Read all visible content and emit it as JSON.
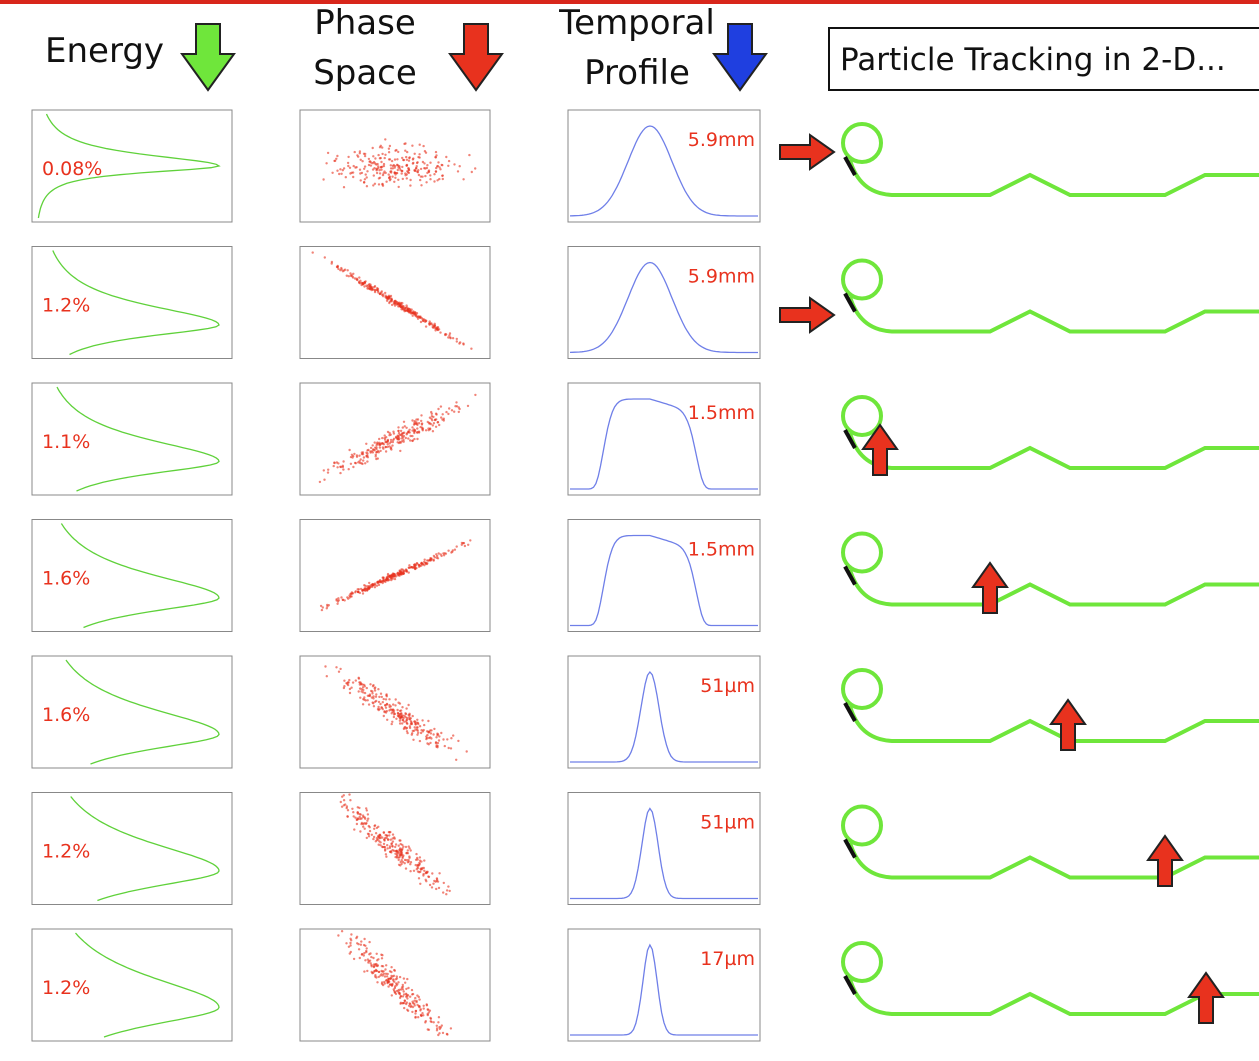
{
  "header": {
    "energy": "Energy",
    "phase_space": [
      "Phase",
      "Space"
    ],
    "temporal_profile": [
      "Temporal",
      "Profile"
    ],
    "tracking": "Particle Tracking in 2-D..."
  },
  "rows": [
    {
      "energy_spread": "0.08%",
      "bunch_length": "5.9mm"
    },
    {
      "energy_spread": "1.2%",
      "bunch_length": "5.9mm"
    },
    {
      "energy_spread": "1.1%",
      "bunch_length": "1.5mm"
    },
    {
      "energy_spread": "1.6%",
      "bunch_length": "1.5mm"
    },
    {
      "energy_spread": "1.6%",
      "bunch_length": "51µm"
    },
    {
      "energy_spread": "1.2%",
      "bunch_length": "51µm"
    },
    {
      "energy_spread": "1.2%",
      "bunch_length": "17µm"
    }
  ]
}
